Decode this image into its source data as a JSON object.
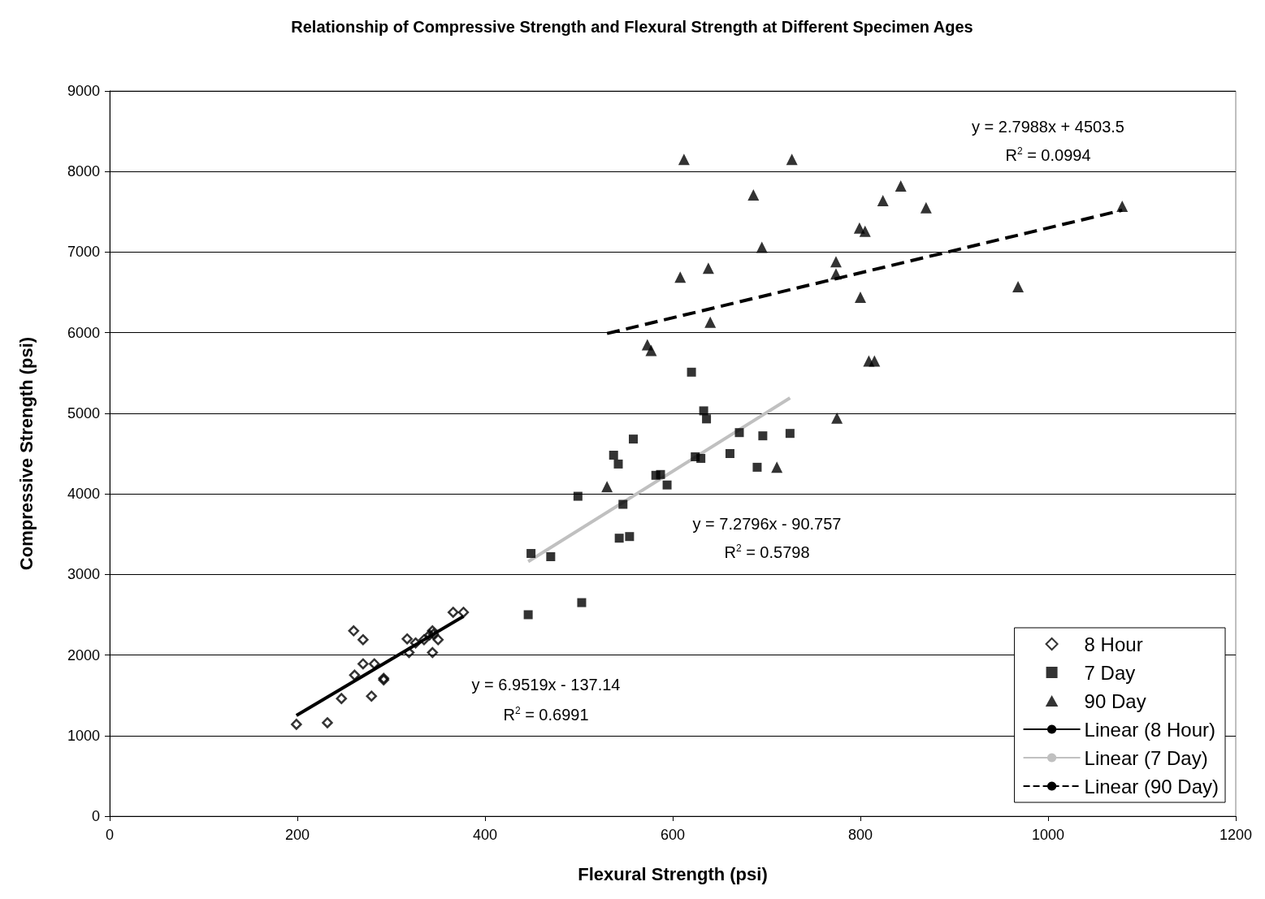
{
  "chart_data": {
    "type": "scatter",
    "title": "Relationship of Compressive Strength and Flexural Strength at Different Specimen Ages",
    "xlabel": "Flexural Strength (psi)",
    "ylabel": "Compressive Strength (psi)",
    "xlim": [
      0,
      1200
    ],
    "xticks": [
      0,
      200,
      400,
      600,
      800,
      1000,
      1200
    ],
    "ylim": [
      0,
      9000
    ],
    "yticks": [
      0,
      1000,
      2000,
      3000,
      4000,
      5000,
      6000,
      7000,
      8000,
      9000
    ],
    "grid": "y",
    "legend": "bottom right",
    "series": [
      {
        "name": "8 Hour",
        "marker": "diamond",
        "color": "#000000",
        "x": [
          199,
          232,
          247,
          261,
          260,
          270,
          270,
          282,
          279,
          292,
          292,
          317,
          319,
          326,
          335,
          341,
          344,
          345,
          344,
          350,
          366,
          377
        ],
        "values": [
          1140,
          1160,
          1460,
          1750,
          2300,
          2190,
          1890,
          1890,
          1490,
          1710,
          1690,
          2200,
          2030,
          2150,
          2190,
          2250,
          2300,
          2260,
          2030,
          2190,
          2530,
          2530
        ]
      },
      {
        "name": "7 Day",
        "marker": "square",
        "color": "#000000",
        "x": [
          449,
          470,
          499,
          503,
          446,
          558,
          537,
          542,
          547,
          543,
          554,
          587,
          594,
          620,
          633,
          636,
          624,
          630,
          661,
          671,
          696,
          690,
          725,
          582
        ],
        "values": [
          3260,
          3220,
          3970,
          2650,
          2500,
          4680,
          4480,
          4370,
          3870,
          3450,
          3470,
          4240,
          4110,
          5510,
          5030,
          4930,
          4460,
          4440,
          4500,
          4760,
          4720,
          4330,
          4750,
          4230
        ]
      },
      {
        "name": "90 Day",
        "marker": "triangle",
        "color": "#000000",
        "x": [
          577,
          530,
          711,
          775,
          612,
          727,
          686,
          843,
          824,
          870,
          1079,
          695,
          799,
          805,
          774,
          774,
          608,
          638,
          800,
          968,
          640,
          573,
          809,
          815
        ],
        "values": [
          5780,
          4090,
          4330,
          4940,
          8150,
          8150,
          7710,
          7820,
          7640,
          7550,
          7570,
          7060,
          7300,
          7260,
          6880,
          6730,
          6690,
          6800,
          6440,
          6570,
          6130,
          5850,
          5650,
          5650
        ]
      },
      {
        "name": "Linear (8 Hour)",
        "type": "line",
        "marker": "none",
        "line_style": "solid",
        "color": "#000000",
        "x": [
          199,
          377
        ],
        "values": [
          1250,
          2480
        ]
      },
      {
        "name": "Linear (7 Day)",
        "type": "line",
        "marker": "none",
        "line_style": "solid",
        "color": "#c0c0c0",
        "x": [
          446,
          725
        ],
        "values": [
          3160,
          5190
        ]
      },
      {
        "name": "Linear (90 Day)",
        "type": "line",
        "marker": "none",
        "line_style": "dashed",
        "color": "#000000",
        "x": [
          530,
          1079
        ],
        "values": [
          5990,
          7520
        ]
      }
    ],
    "annotations": [
      "y = 6.9519x - 137.14",
      "R$^{2}$ = 0.6991",
      "y = 7.2796x - 90.757",
      "R$^{2}$ = 0.5798",
      "y = 2.7988x + 4503.5",
      "R$^{2}$ = 0.0994"
    ]
  }
}
